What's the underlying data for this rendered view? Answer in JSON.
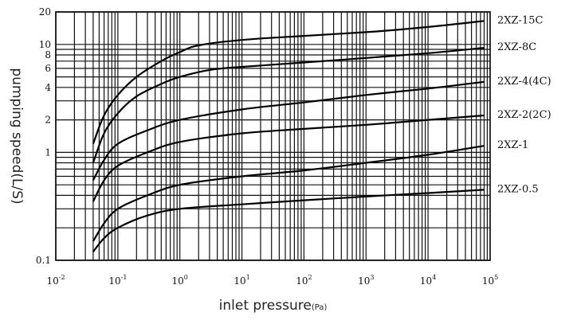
{
  "chart_data": {
    "type": "line",
    "xlabel": "inlet pressure",
    "xlabel_unit": "(Pa)",
    "ylabel": "pumping speed(L/S)",
    "x_scale": "log",
    "y_scale": "log",
    "xlim": [
      0.01,
      100000
    ],
    "ylim": [
      0.1,
      20
    ],
    "grid": true,
    "legend": "right",
    "x_ticks": [
      {
        "base": "10",
        "exp": "-2"
      },
      {
        "base": "10",
        "exp": "-1"
      },
      {
        "base": "10",
        "exp": "0"
      },
      {
        "base": "10",
        "exp": "1"
      },
      {
        "base": "10",
        "exp": "2"
      },
      {
        "base": "10",
        "exp": "3"
      },
      {
        "base": "10",
        "exp": "4"
      },
      {
        "base": "10",
        "exp": "5"
      }
    ],
    "y_ticks": [
      "20",
      "10",
      "8",
      "6",
      "4",
      "2",
      "1",
      "0.1"
    ],
    "series": [
      {
        "name": "2XZ-15C",
        "x": [
          0.04,
          0.06,
          0.1,
          0.2,
          0.5,
          1,
          2,
          10,
          100,
          1000,
          10000,
          80000
        ],
        "y": [
          1.2,
          2.2,
          3.4,
          5,
          7,
          8.5,
          9.8,
          11,
          12,
          13,
          14.5,
          16.5
        ]
      },
      {
        "name": "2XZ-8C",
        "x": [
          0.04,
          0.06,
          0.1,
          0.2,
          0.5,
          1,
          3,
          10,
          100,
          1000,
          10000,
          80000
        ],
        "y": [
          0.8,
          1.5,
          2.3,
          3.3,
          4.3,
          5,
          5.8,
          6.2,
          6.8,
          7.5,
          8.3,
          9.3
        ]
      },
      {
        "name": "2XZ-4(4C)",
        "x": [
          0.04,
          0.06,
          0.1,
          0.3,
          1,
          10,
          100,
          1000,
          10000,
          80000
        ],
        "y": [
          0.55,
          0.85,
          1.2,
          1.6,
          2,
          2.5,
          2.9,
          3.4,
          3.9,
          4.5
        ]
      },
      {
        "name": "2XZ-2(2C)",
        "x": [
          0.04,
          0.06,
          0.1,
          0.3,
          1,
          10,
          100,
          1000,
          10000,
          80000
        ],
        "y": [
          0.35,
          0.55,
          0.75,
          1,
          1.25,
          1.5,
          1.65,
          1.8,
          2,
          2.2
        ]
      },
      {
        "name": "2XZ-1",
        "x": [
          0.04,
          0.06,
          0.1,
          0.3,
          1,
          10,
          100,
          1000,
          10000,
          80000
        ],
        "y": [
          0.15,
          0.22,
          0.3,
          0.4,
          0.5,
          0.6,
          0.68,
          0.8,
          0.95,
          1.15
        ]
      },
      {
        "name": "2XZ-0.5",
        "x": [
          0.04,
          0.06,
          0.1,
          0.3,
          1,
          10,
          100,
          1000,
          10000,
          80000
        ],
        "y": [
          0.12,
          0.16,
          0.2,
          0.26,
          0.3,
          0.33,
          0.36,
          0.39,
          0.42,
          0.45
        ]
      }
    ]
  }
}
